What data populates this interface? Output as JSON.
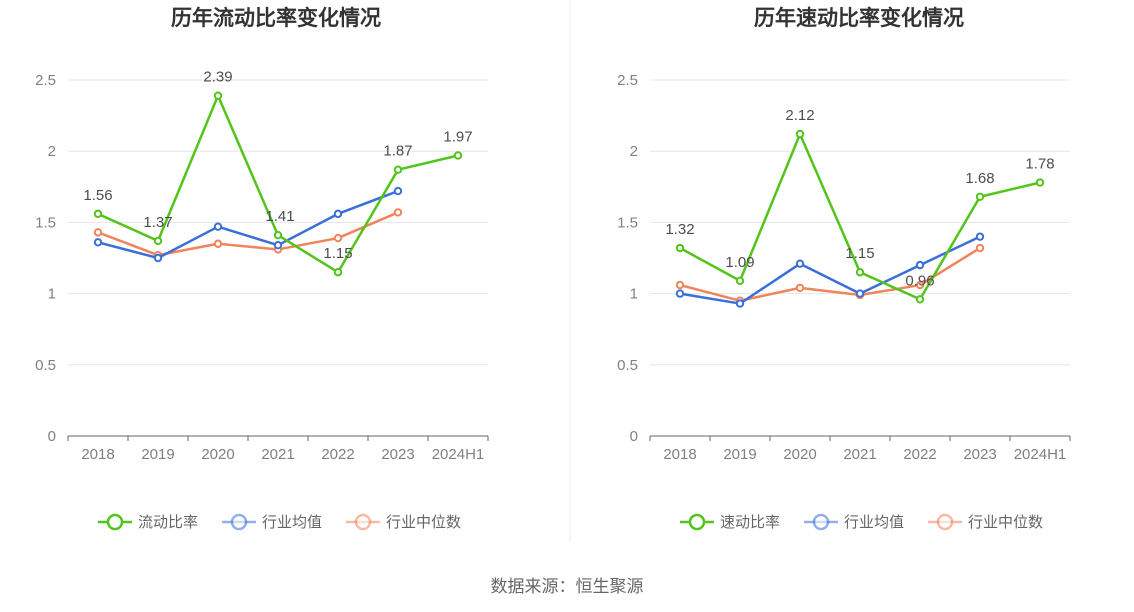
{
  "colors": {
    "company": "#52c41a",
    "industry_avg": "#3a6fd8",
    "industry_median": "#f0845a",
    "grid": "#e6e6e6",
    "axis": "#666666"
  },
  "source_text": "数据来源：恒生聚源",
  "chart_data": [
    {
      "type": "line",
      "title": "历年流动比率变化情况",
      "categories": [
        "2018",
        "2019",
        "2020",
        "2021",
        "2022",
        "2023",
        "2024H1"
      ],
      "ylim": [
        0,
        2.5
      ],
      "yticks": [
        "0",
        "0.5",
        "1",
        "1.5",
        "2",
        "2.5"
      ],
      "grid": true,
      "legend_position": "bottom",
      "series": [
        {
          "name": "流动比率",
          "color_key": "company",
          "labeled": true,
          "values": [
            1.56,
            1.37,
            2.39,
            1.41,
            1.15,
            1.87,
            1.97
          ]
        },
        {
          "name": "行业均值",
          "color_key": "industry_avg",
          "labeled": false,
          "values": [
            1.36,
            1.25,
            1.47,
            1.34,
            1.56,
            1.72,
            null
          ]
        },
        {
          "name": "行业中位数",
          "color_key": "industry_median",
          "labeled": false,
          "values": [
            1.43,
            1.27,
            1.35,
            1.31,
            1.39,
            1.57,
            null
          ]
        }
      ]
    },
    {
      "type": "line",
      "title": "历年速动比率变化情况",
      "categories": [
        "2018",
        "2019",
        "2020",
        "2021",
        "2022",
        "2023",
        "2024H1"
      ],
      "ylim": [
        0,
        2.5
      ],
      "yticks": [
        "0",
        "0.5",
        "1",
        "1.5",
        "2",
        "2.5"
      ],
      "grid": true,
      "legend_position": "bottom",
      "series": [
        {
          "name": "速动比率",
          "color_key": "company",
          "labeled": true,
          "values": [
            1.32,
            1.09,
            2.12,
            1.15,
            0.96,
            1.68,
            1.78
          ]
        },
        {
          "name": "行业均值",
          "color_key": "industry_avg",
          "labeled": false,
          "values": [
            1.0,
            0.93,
            1.21,
            1.0,
            1.2,
            1.4,
            null
          ]
        },
        {
          "name": "行业中位数",
          "color_key": "industry_median",
          "labeled": false,
          "values": [
            1.06,
            0.95,
            1.04,
            0.99,
            1.06,
            1.32,
            null
          ]
        }
      ]
    }
  ]
}
